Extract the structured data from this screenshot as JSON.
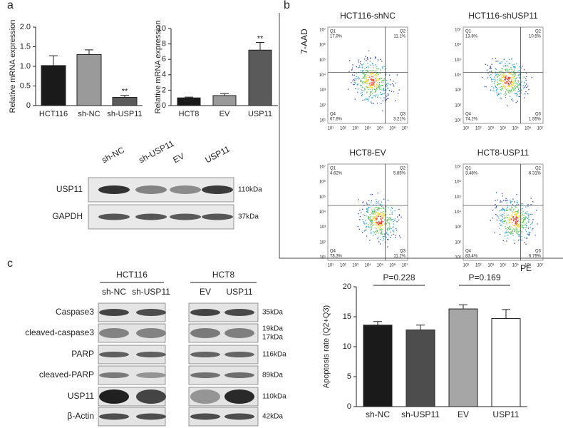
{
  "panel_labels": [
    "a",
    "b",
    "c"
  ],
  "chart_data": [
    {
      "type": "bar",
      "ylabel": "Relative mRNA expression",
      "categories": [
        "HCT116",
        "sh-NC",
        "sh-USP11"
      ],
      "values": [
        1.02,
        1.3,
        0.21
      ],
      "errors": [
        0.25,
        0.12,
        0.05
      ],
      "colors": [
        "#1a1a1a",
        "#9a9a9a",
        "#5a5a5a"
      ],
      "ylim": [
        0,
        2
      ],
      "yticks": [
        0,
        0.5,
        {
          "value": 1,
          "label": "1.0"
        },
        1.5,
        {
          "value": 2,
          "label": "2.0"
        }
      ],
      "annotations": [
        "**"
      ]
    },
    {
      "type": "bar",
      "ylabel": "Relative mRNA expression",
      "categories": [
        "HCT8",
        "EV",
        "USP11"
      ],
      "values": [
        1.0,
        1.3,
        7.2
      ],
      "errors": [
        0.1,
        0.25,
        1.0
      ],
      "colors": [
        "#1a1a1a",
        "#9a9a9a",
        "#5a5a5a"
      ],
      "ylim": [
        0,
        10
      ],
      "yticks": [
        0,
        2,
        4,
        6,
        8,
        10
      ],
      "annotations": [
        "**"
      ]
    },
    {
      "type": "bar",
      "ylabel": "Apoptosis rate (Q2+Q3)",
      "categories": [
        "sh-NC",
        "sh-USP11",
        "EV",
        "USP11"
      ],
      "values": [
        13.6,
        12.8,
        16.3,
        14.7
      ],
      "errors": [
        0.6,
        0.8,
        0.7,
        1.5
      ],
      "colors": [
        "#1a1a1a",
        "#4d4d4d",
        "#a6a6a6",
        "#ffffff"
      ],
      "ylim": [
        0,
        20
      ],
      "yticks": [
        0,
        5,
        10,
        15,
        20
      ],
      "annotations": [
        "P=0.228",
        "P=0.169"
      ]
    }
  ],
  "flow": {
    "y_label": "7-AAD",
    "x_label": "PE",
    "ticks": [
      "10¹",
      "10²",
      "10³",
      "10⁴",
      "10⁵",
      "10⁶",
      "10⁷"
    ],
    "panels": [
      {
        "title": "HCT116-shNC",
        "quadrants": [
          {
            "name": "Q1",
            "value": "17.9%"
          },
          {
            "name": "Q2",
            "value": "11.1%"
          },
          {
            "name": "Q4",
            "value": "67.8%"
          },
          {
            "name": "Q3",
            "value": "3.21%"
          }
        ]
      },
      {
        "title": "HCT116-shUSP11",
        "quadrants": [
          {
            "name": "Q1",
            "value": "13.8%"
          },
          {
            "name": "Q2",
            "value": "10.5%"
          },
          {
            "name": "Q4",
            "value": "74.2%"
          },
          {
            "name": "Q3",
            "value": "1.55%"
          }
        ]
      },
      {
        "title": "HCT8-EV",
        "quadrants": [
          {
            "name": "Q1",
            "value": "4.62%"
          },
          {
            "name": "Q2",
            "value": "5.85%"
          },
          {
            "name": "Q4",
            "value": "78.3%"
          },
          {
            "name": "Q3",
            "value": "11.2%"
          }
        ]
      },
      {
        "title": "HCT8-USP11",
        "quadrants": [
          {
            "name": "Q1",
            "value": "3.48%"
          },
          {
            "name": "Q2",
            "value": "6.31%"
          },
          {
            "name": "Q4",
            "value": "83.4%"
          },
          {
            "name": "Q3",
            "value": "6.79%"
          }
        ]
      }
    ]
  },
  "blot_a": {
    "lanes": [
      "sh-NC",
      "sh-USP11",
      "EV",
      "USP11"
    ],
    "rows": [
      {
        "name": "USP11",
        "size": [
          "110kDa"
        ]
      },
      {
        "name": "GAPDH",
        "size": [
          "37kDa"
        ]
      }
    ]
  },
  "blot_c": {
    "groups": [
      {
        "name": "HCT116",
        "lanes": [
          "sh-NC",
          "sh-USP11"
        ]
      },
      {
        "name": "HCT8",
        "lanes": [
          "EV",
          "USP11"
        ]
      }
    ],
    "rows": [
      {
        "name": "Caspase3",
        "size": [
          "35kDa"
        ]
      },
      {
        "name": "cleaved-caspase3",
        "size": [
          "19kDa",
          "17kDa"
        ]
      },
      {
        "name": "PARP",
        "size": [
          "116kDa"
        ]
      },
      {
        "name": "cleaved-PARP",
        "size": [
          "89kDa"
        ]
      },
      {
        "name": "USP11",
        "size": [
          "110kDa"
        ]
      },
      {
        "name": "β-Actin",
        "size": [
          "42kDa"
        ]
      }
    ]
  }
}
